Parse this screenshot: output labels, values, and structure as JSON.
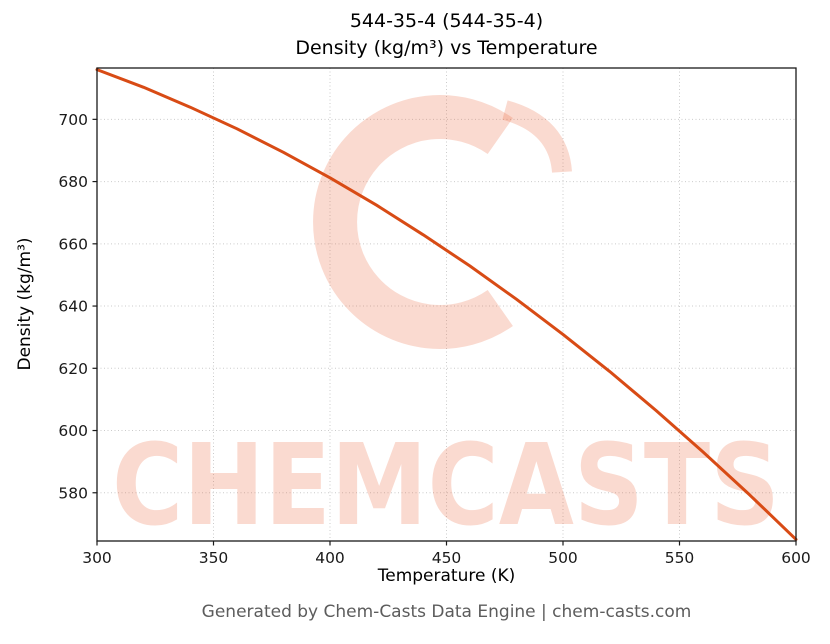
{
  "title": {
    "line1": "544-35-4 (544-35-4)",
    "line2": "Density (kg/m³) vs Temperature"
  },
  "footer": "Generated by Chem-Casts Data Engine | chem-casts.com",
  "watermark": {
    "text": "CHEMCASTS",
    "color": "rgba(233, 99, 60, 0.24)"
  },
  "chart_data": {
    "type": "line",
    "title": "544-35-4 (544-35-4) — Density (kg/m³) vs Temperature",
    "xlabel": "Temperature (K)",
    "ylabel": "Density (kg/m³)",
    "xlim": [
      300,
      600
    ],
    "ylim": [
      564.5,
      716.5
    ],
    "xticks": [
      300,
      350,
      400,
      450,
      500,
      550,
      600
    ],
    "yticks": [
      580,
      600,
      620,
      640,
      660,
      680,
      700
    ],
    "grid": true,
    "grid_style": "dotted",
    "legend": "none",
    "grid_color": "#cbcbcb",
    "axis_color": "#1a1a1a",
    "text_color": "#1a1a1a",
    "line_color": "#d84b15",
    "line_width": 3,
    "series": [
      {
        "name": "Density (kg/m³)",
        "x": [
          300,
          320,
          340,
          360,
          380,
          400,
          420,
          440,
          460,
          480,
          500,
          520,
          540,
          560,
          580,
          600
        ],
        "values": [
          716.0,
          710.3,
          703.9,
          697.0,
          689.4,
          681.2,
          672.4,
          662.9,
          652.9,
          642.2,
          630.9,
          619.0,
          606.4,
          593.2,
          579.4,
          565.0
        ]
      }
    ]
  }
}
